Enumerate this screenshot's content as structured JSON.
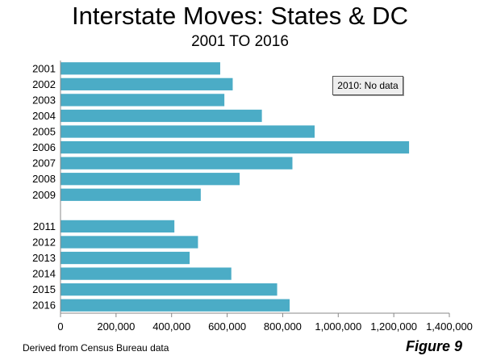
{
  "chart_data": {
    "type": "bar",
    "orientation": "horizontal",
    "title": "Interstate Moves: States & DC",
    "subtitle": "2001 TO 2016",
    "categories": [
      "2001",
      "2002",
      "2003",
      "2004",
      "2005",
      "2006",
      "2007",
      "2008",
      "2009",
      "2010",
      "2011",
      "2012",
      "2013",
      "2014",
      "2015",
      "2016"
    ],
    "values": [
      575000,
      620000,
      590000,
      725000,
      915000,
      1255000,
      835000,
      645000,
      505000,
      null,
      410000,
      495000,
      465000,
      615000,
      780000,
      825000
    ],
    "xlim": [
      0,
      1400000
    ],
    "xticks": [
      "0",
      "200,000",
      "400,000",
      "600,000",
      "800,000",
      "1,000,000",
      "1,200,000",
      "1,400,000"
    ],
    "bar_color": "#4bacc6",
    "grid": false,
    "annotation": "2010: No data"
  },
  "footer": {
    "source": "Derived from Census Bureau data",
    "figure": "Figure 9"
  }
}
